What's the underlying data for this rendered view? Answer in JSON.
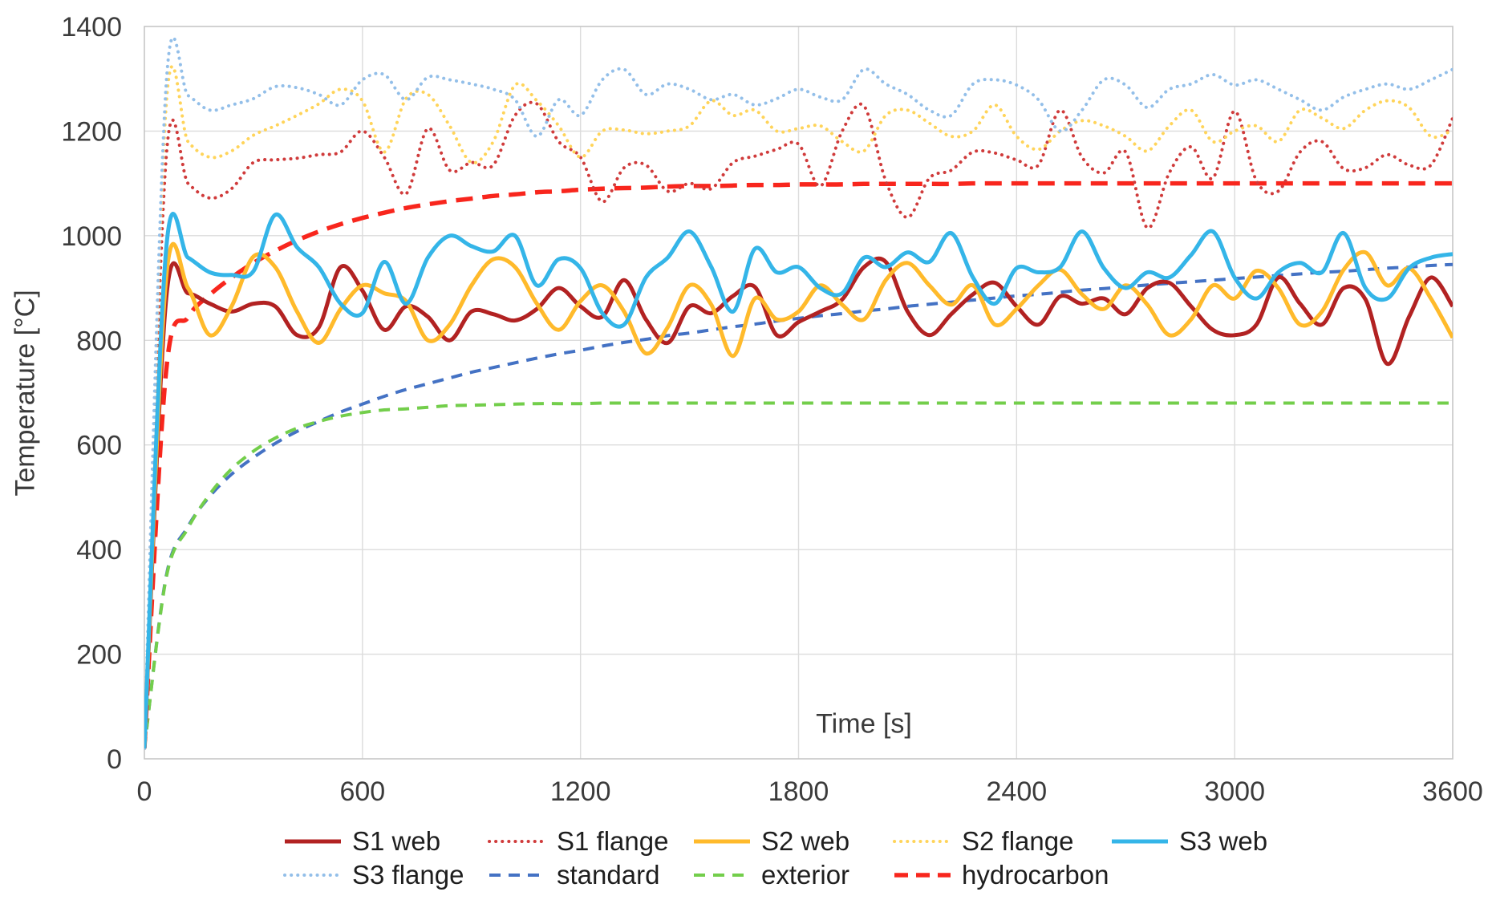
{
  "styles": {
    "background": "#ffffff",
    "grid_color": "#dcdcdc",
    "plot_border_color": "#c6c6c6",
    "axis_text_color": "#3b3b3b",
    "legend_text_color": "#1e1e1e"
  },
  "chart_data": {
    "type": "line",
    "title": "",
    "xlabel": "Time [s]",
    "ylabel": "Temperature [°C]",
    "xlim": [
      0,
      3600
    ],
    "ylim": [
      0,
      1400
    ],
    "x_ticks": [
      0,
      600,
      1200,
      1800,
      2400,
      3000,
      3600
    ],
    "y_ticks": [
      0,
      200,
      400,
      600,
      800,
      1000,
      1200,
      1400
    ],
    "grid": true,
    "legend_position": "bottom",
    "x_start": 0,
    "x_step": 60,
    "legend_rows": [
      [
        "S1 web",
        "S1 flange",
        "S2 web",
        "S2 flange",
        "S3 web"
      ],
      [
        "S3 flange",
        "standard",
        "exterior",
        "hydrocarbon"
      ]
    ],
    "series": [
      {
        "name": "standard",
        "color": "#4472c4",
        "line_style": "dashed",
        "width": 4,
        "dasharray": "14 10",
        "values": [
          20,
          349,
          444,
          502,
          544,
          576,
          603,
          626,
          645,
          663,
          678,
          693,
          706,
          717,
          728,
          739,
          748,
          757,
          766,
          774,
          781,
          789,
          796,
          802,
          809,
          814,
          820,
          826,
          831,
          837,
          842,
          847,
          851,
          856,
          860,
          865,
          869,
          873,
          877,
          881,
          885,
          888,
          892,
          896,
          899,
          902,
          906,
          909,
          912,
          915,
          918,
          921,
          924,
          927,
          930,
          932,
          935,
          938,
          940,
          943,
          945
        ]
      },
      {
        "name": "exterior",
        "color": "#73ce4b",
        "line_style": "dashed",
        "width": 4,
        "dasharray": "14 10",
        "values": [
          20,
          346,
          441,
          506,
          554,
          588,
          613,
          632,
          645,
          655,
          662,
          667,
          669,
          672,
          675,
          676,
          677,
          678,
          679,
          679,
          679,
          680,
          680,
          680,
          680,
          680,
          680,
          680,
          680,
          680,
          680,
          680,
          680,
          680,
          680,
          680,
          680,
          680,
          680,
          680,
          680,
          680,
          680,
          680,
          680,
          680,
          680,
          680,
          680,
          680,
          680,
          680,
          680,
          680,
          680,
          680,
          680,
          680,
          680,
          680,
          680
        ]
      },
      {
        "name": "hydrocarbon",
        "color": "#f8261d",
        "line_style": "dashed",
        "width": 5.5,
        "dasharray": "21 12",
        "values": [
          20,
          743,
          844,
          887,
          920,
          948,
          971,
          991,
          1008,
          1022,
          1034,
          1044,
          1053,
          1060,
          1066,
          1071,
          1076,
          1079,
          1083,
          1085,
          1088,
          1090,
          1091,
          1092,
          1094,
          1095,
          1095,
          1096,
          1097,
          1097,
          1098,
          1098,
          1098,
          1099,
          1099,
          1099,
          1099,
          1099,
          1100,
          1100,
          1100,
          1100,
          1100,
          1100,
          1100,
          1100,
          1100,
          1100,
          1100,
          1100,
          1100,
          1100,
          1100,
          1100,
          1100,
          1100,
          1100,
          1100,
          1100,
          1100,
          1100
        ]
      },
      {
        "name": "S1 flange",
        "color": "#d03b3b",
        "line_style": "dotted",
        "width": 4,
        "dasharray": "0.1 8",
        "values": [
          20,
          1150,
          1100,
          1072,
          1090,
          1140,
          1145,
          1148,
          1155,
          1160,
          1200,
          1150,
          1080,
          1205,
          1125,
          1140,
          1135,
          1230,
          1252,
          1180,
          1150,
          1065,
          1130,
          1135,
          1085,
          1100,
          1090,
          1140,
          1152,
          1165,
          1175,
          1095,
          1200,
          1248,
          1105,
          1035,
          1110,
          1125,
          1160,
          1158,
          1145,
          1135,
          1240,
          1150,
          1120,
          1160,
          1015,
          1120,
          1170,
          1110,
          1238,
          1105,
          1085,
          1160,
          1180,
          1128,
          1130,
          1155,
          1135,
          1135,
          1225
        ]
      },
      {
        "name": "S2 flange",
        "color": "#ffd45a",
        "line_style": "dotted",
        "width": 4,
        "dasharray": "0.1 8",
        "values": [
          20,
          1250,
          1180,
          1150,
          1162,
          1192,
          1210,
          1230,
          1252,
          1280,
          1258,
          1160,
          1262,
          1270,
          1210,
          1140,
          1180,
          1288,
          1258,
          1210,
          1150,
          1200,
          1202,
          1195,
          1200,
          1210,
          1258,
          1230,
          1240,
          1200,
          1205,
          1210,
          1180,
          1162,
          1230,
          1240,
          1215,
          1190,
          1200,
          1250,
          1190,
          1165,
          1200,
          1220,
          1210,
          1190,
          1162,
          1210,
          1240,
          1180,
          1200,
          1210,
          1180,
          1240,
          1225,
          1205,
          1240,
          1258,
          1245,
          1190,
          1202
        ]
      },
      {
        "name": "S3 flange",
        "color": "#93bfe9",
        "line_style": "dotted",
        "width": 4,
        "dasharray": "0.1 8",
        "values": [
          20,
          1290,
          1268,
          1240,
          1250,
          1262,
          1285,
          1283,
          1270,
          1250,
          1298,
          1308,
          1260,
          1303,
          1298,
          1290,
          1280,
          1260,
          1190,
          1260,
          1230,
          1298,
          1318,
          1270,
          1290,
          1280,
          1260,
          1270,
          1250,
          1262,
          1280,
          1265,
          1260,
          1318,
          1290,
          1270,
          1240,
          1230,
          1290,
          1298,
          1288,
          1260,
          1200,
          1240,
          1298,
          1288,
          1245,
          1280,
          1290,
          1308,
          1288,
          1298,
          1280,
          1260,
          1240,
          1265,
          1280,
          1290,
          1280,
          1298,
          1318
        ]
      },
      {
        "name": "S1 web",
        "color": "#b22222",
        "line_style": "solid",
        "width": 5,
        "dasharray": "",
        "values": [
          20,
          880,
          890,
          870,
          855,
          870,
          865,
          810,
          825,
          940,
          895,
          820,
          865,
          845,
          800,
          855,
          850,
          838,
          860,
          900,
          865,
          845,
          915,
          840,
          795,
          865,
          852,
          885,
          902,
          810,
          835,
          855,
          878,
          940,
          950,
          855,
          810,
          850,
          888,
          910,
          865,
          830,
          884,
          870,
          880,
          850,
          900,
          910,
          865,
          820,
          810,
          830,
          920,
          870,
          830,
          900,
          878,
          755,
          845,
          920,
          865
        ]
      },
      {
        "name": "S2 web",
        "color": "#ffba2b",
        "line_style": "solid",
        "width": 5,
        "dasharray": "",
        "values": [
          20,
          920,
          900,
          810,
          865,
          960,
          940,
          855,
          795,
          860,
          905,
          890,
          875,
          800,
          830,
          905,
          955,
          940,
          870,
          820,
          875,
          905,
          855,
          775,
          825,
          905,
          868,
          770,
          880,
          840,
          855,
          905,
          868,
          840,
          915,
          948,
          905,
          868,
          905,
          830,
          860,
          905,
          935,
          888,
          860,
          905,
          868,
          810,
          840,
          905,
          880,
          933,
          900,
          830,
          855,
          935,
          968,
          905,
          938,
          880,
          805
        ]
      },
      {
        "name": "S3 web",
        "color": "#34b5e8",
        "line_style": "solid",
        "width": 5,
        "dasharray": "",
        "values": [
          20,
          975,
          958,
          930,
          925,
          932,
          1040,
          978,
          940,
          870,
          852,
          950,
          870,
          958,
          1000,
          980,
          970,
          1000,
          905,
          955,
          938,
          852,
          830,
          920,
          958,
          1008,
          940,
          855,
          975,
          930,
          940,
          900,
          890,
          958,
          940,
          968,
          950,
          1005,
          920,
          870,
          938,
          930,
          940,
          1008,
          938,
          900,
          930,
          920,
          963,
          1008,
          920,
          880,
          930,
          948,
          930,
          1005,
          900,
          880,
          938,
          958,
          965
        ]
      }
    ]
  }
}
